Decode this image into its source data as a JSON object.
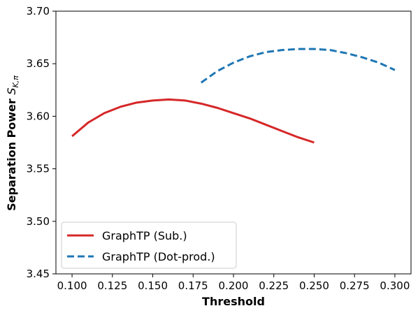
{
  "chart_data": {
    "type": "line",
    "xlabel": "Threshold",
    "ylabel_main": "Separation Power ",
    "ylabel_symbol": "S",
    "ylabel_subscript": "K,π",
    "xlim": [
      0.09,
      0.31
    ],
    "ylim": [
      3.45,
      3.7
    ],
    "xticks": [
      "0.100",
      "0.125",
      "0.150",
      "0.175",
      "0.200",
      "0.225",
      "0.250",
      "0.275",
      "0.300"
    ],
    "yticks": [
      "3.45",
      "3.50",
      "3.55",
      "3.60",
      "3.65",
      "3.70"
    ],
    "grid": false,
    "legend_position": "lower-left",
    "series": [
      {
        "name": "GraphTP (Sub.)",
        "color": "#d62728",
        "style": "solid",
        "x": [
          0.1,
          0.11,
          0.12,
          0.13,
          0.14,
          0.15,
          0.16,
          0.17,
          0.18,
          0.19,
          0.2,
          0.21,
          0.22,
          0.23,
          0.24,
          0.25
        ],
        "y": [
          3.581,
          3.594,
          3.603,
          3.609,
          3.613,
          3.615,
          3.616,
          3.615,
          3.612,
          3.608,
          3.603,
          3.598,
          3.592,
          3.586,
          3.58,
          3.575
        ]
      },
      {
        "name": "GraphTP (Dot-prod.)",
        "color": "#1f77b4",
        "style": "dashed",
        "x": [
          0.18,
          0.19,
          0.2,
          0.21,
          0.22,
          0.23,
          0.24,
          0.25,
          0.26,
          0.27,
          0.28,
          0.29,
          0.3
        ],
        "y": [
          3.632,
          3.643,
          3.651,
          3.657,
          3.661,
          3.663,
          3.664,
          3.664,
          3.663,
          3.66,
          3.656,
          3.651,
          3.644
        ]
      }
    ]
  }
}
